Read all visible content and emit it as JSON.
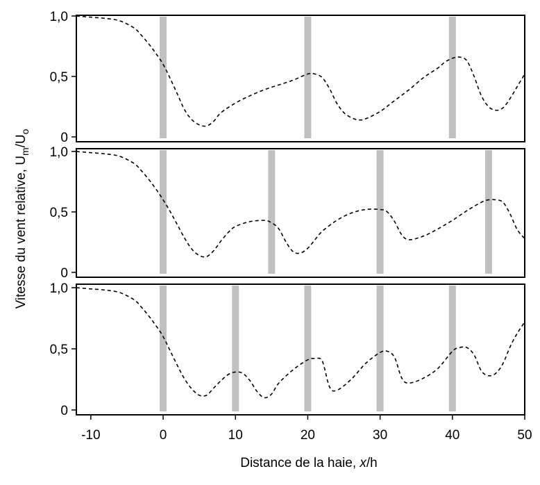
{
  "chart_data": [
    {
      "type": "line",
      "xlim": [
        -12,
        50
      ],
      "ylim": [
        0,
        1.0
      ],
      "yticks": [
        0,
        0.5,
        1.0
      ],
      "ytick_labels": [
        "0",
        "0,5",
        "1,0"
      ],
      "hedges_x": [
        0,
        20,
        40
      ],
      "series": [
        {
          "x": [
            -12,
            -10,
            -8,
            -6,
            -4,
            -3,
            -2,
            -1,
            0,
            1,
            2,
            3,
            4,
            5,
            6,
            7,
            8,
            10,
            12,
            14,
            16,
            18,
            20,
            21,
            22,
            23,
            24,
            25,
            26,
            27,
            28,
            30,
            32,
            34,
            36,
            38,
            39,
            40,
            41,
            42,
            43,
            44,
            45,
            46,
            47,
            48,
            49,
            50
          ],
          "y": [
            1.0,
            0.99,
            0.98,
            0.96,
            0.9,
            0.84,
            0.77,
            0.69,
            0.6,
            0.48,
            0.35,
            0.22,
            0.14,
            0.1,
            0.09,
            0.13,
            0.2,
            0.28,
            0.34,
            0.39,
            0.43,
            0.47,
            0.52,
            0.52,
            0.49,
            0.4,
            0.28,
            0.2,
            0.16,
            0.14,
            0.15,
            0.21,
            0.3,
            0.39,
            0.49,
            0.57,
            0.62,
            0.65,
            0.66,
            0.63,
            0.5,
            0.34,
            0.25,
            0.22,
            0.24,
            0.32,
            0.42,
            0.52
          ]
        }
      ]
    },
    {
      "type": "line",
      "xlim": [
        -12,
        50
      ],
      "ylim": [
        0,
        1.0
      ],
      "yticks": [
        0,
        0.5,
        1.0
      ],
      "ytick_labels": [
        "0",
        "0,5",
        "1,0"
      ],
      "hedges_x": [
        0,
        15,
        30,
        45
      ],
      "series": [
        {
          "x": [
            -12,
            -10,
            -8,
            -6,
            -4,
            -3,
            -2,
            -1,
            0,
            1,
            2,
            3,
            4,
            5,
            6,
            7,
            8,
            9,
            10,
            12,
            14,
            15,
            16,
            17,
            18,
            19,
            20,
            21,
            22,
            24,
            26,
            28,
            30,
            31,
            32,
            33,
            34,
            36,
            38,
            40,
            42,
            44,
            45,
            46,
            47,
            48,
            49,
            50
          ],
          "y": [
            1.0,
            0.99,
            0.98,
            0.96,
            0.9,
            0.84,
            0.77,
            0.69,
            0.6,
            0.5,
            0.39,
            0.28,
            0.19,
            0.14,
            0.13,
            0.18,
            0.26,
            0.33,
            0.38,
            0.42,
            0.43,
            0.41,
            0.36,
            0.25,
            0.17,
            0.16,
            0.2,
            0.27,
            0.34,
            0.43,
            0.49,
            0.52,
            0.52,
            0.5,
            0.42,
            0.31,
            0.27,
            0.3,
            0.36,
            0.43,
            0.51,
            0.58,
            0.6,
            0.6,
            0.58,
            0.48,
            0.35,
            0.28
          ]
        }
      ]
    },
    {
      "type": "line",
      "xlim": [
        -12,
        50
      ],
      "ylim": [
        0,
        1.0
      ],
      "yticks": [
        0,
        0.5,
        1.0
      ],
      "ytick_labels": [
        "0",
        "0,5",
        "1,0"
      ],
      "hedges_x": [
        0,
        10,
        20,
        30,
        40
      ],
      "xticks": [
        -10,
        0,
        10,
        20,
        30,
        40,
        50
      ],
      "xtick_labels": [
        "-10",
        "0",
        "10",
        "20",
        "30",
        "40",
        "50"
      ],
      "series": [
        {
          "x": [
            -12,
            -10,
            -8,
            -6,
            -4,
            -3,
            -2,
            -1,
            0,
            1,
            2,
            3,
            4,
            5,
            6,
            7,
            8,
            9,
            10,
            11,
            12,
            13,
            14,
            15,
            16,
            18,
            20,
            21,
            22,
            23,
            24,
            26,
            28,
            30,
            31,
            32,
            33,
            34,
            36,
            38,
            40,
            41,
            42,
            43,
            44,
            45,
            46,
            47,
            48,
            49,
            50
          ],
          "y": [
            1.0,
            0.99,
            0.98,
            0.96,
            0.9,
            0.84,
            0.77,
            0.69,
            0.6,
            0.48,
            0.36,
            0.25,
            0.17,
            0.12,
            0.12,
            0.18,
            0.24,
            0.29,
            0.31,
            0.3,
            0.24,
            0.15,
            0.1,
            0.13,
            0.22,
            0.33,
            0.41,
            0.42,
            0.4,
            0.19,
            0.16,
            0.25,
            0.38,
            0.47,
            0.48,
            0.43,
            0.26,
            0.22,
            0.26,
            0.34,
            0.48,
            0.51,
            0.51,
            0.45,
            0.32,
            0.28,
            0.3,
            0.38,
            0.52,
            0.63,
            0.72
          ]
        }
      ]
    }
  ],
  "axes": {
    "xlabel_text": "Distance de la haie, ",
    "xlabel_var": "x",
    "xlabel_unit": "/h",
    "ylabel_text": "Vitesse du vent relative, U",
    "ylabel_sub1": "m",
    "ylabel_mid": "/U",
    "ylabel_sub2": "o"
  }
}
